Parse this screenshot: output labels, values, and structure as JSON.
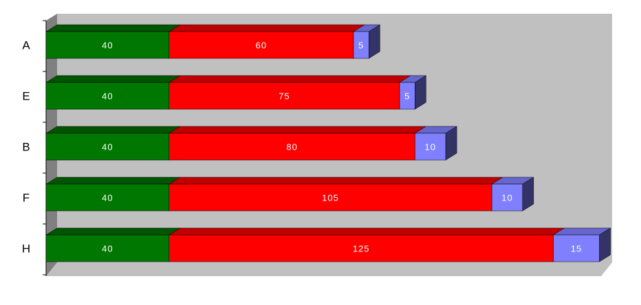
{
  "chart_data": {
    "type": "bar",
    "orientation": "horizontal",
    "stacked": true,
    "three_d": true,
    "categories": [
      "A",
      "E",
      "B",
      "F",
      "H"
    ],
    "series": [
      {
        "values": [
          40,
          40,
          40,
          40,
          40
        ],
        "color": "#007700",
        "top_color": "#005500",
        "side_color": "#004400"
      },
      {
        "values": [
          60,
          75,
          80,
          105,
          125
        ],
        "color": "#ff0000",
        "top_color": "#c00000",
        "side_color": "#a00000"
      },
      {
        "values": [
          5,
          5,
          10,
          10,
          15
        ],
        "color": "#8080ff",
        "top_color": "#6666cc",
        "side_color": "#333366"
      }
    ],
    "data_labels": true,
    "xlim": [
      0,
      180
    ],
    "grid": false,
    "legend": "none",
    "wall_color": "#c0c0c0",
    "floor_color": "#808080"
  }
}
